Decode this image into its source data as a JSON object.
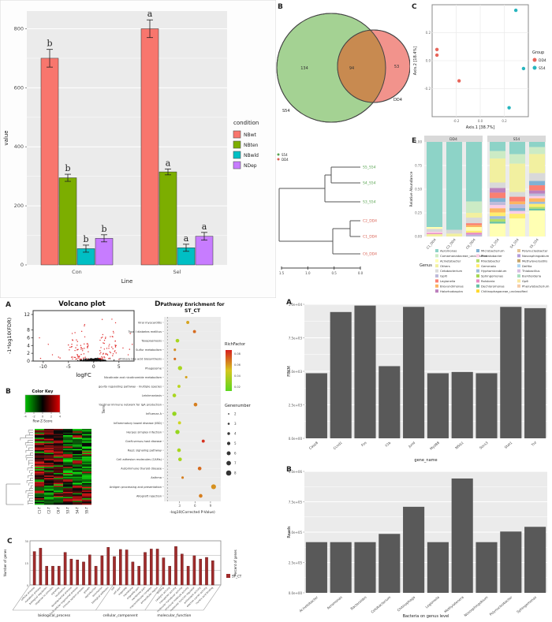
{
  "chart_data": [
    {
      "type": "bar",
      "panel_label": "",
      "title": "",
      "xlabel": "Line",
      "ylabel": "value",
      "categories": [
        "Con",
        "Sel"
      ],
      "legend_title": "condition",
      "series": [
        {
          "name": "NBwt",
          "color": "#F8766D",
          "values": [
            700,
            800
          ],
          "errors": [
            30,
            30
          ],
          "letters": [
            "b",
            "a"
          ]
        },
        {
          "name": "NBten",
          "color": "#7CAE00",
          "values": [
            295,
            315
          ],
          "errors": [
            12,
            10
          ],
          "letters": [
            "b",
            "a"
          ]
        },
        {
          "name": "NBwld",
          "color": "#00BFC4",
          "values": [
            55,
            58
          ],
          "errors": [
            12,
            12
          ],
          "letters": [
            "b",
            "a"
          ]
        },
        {
          "name": "NDep",
          "color": "#C77CFF",
          "values": [
            90,
            97
          ],
          "errors": [
            12,
            13
          ],
          "letters": [
            "b",
            "a"
          ]
        }
      ],
      "yticks": [
        0,
        200,
        400,
        600,
        800
      ],
      "ylim": [
        0,
        860
      ]
    },
    {
      "type": "venn",
      "panel_label": "B",
      "left_label": "S54",
      "right_label": "DD4",
      "left_only": "134",
      "overlap": "94",
      "right_only": "53",
      "left_color": "#A4D293",
      "right_color": "#F2938C",
      "overlap_color": "#C88A50"
    },
    {
      "type": "scatter",
      "panel_label": "C",
      "xlabel": "Axis.1 [38.7%]",
      "ylabel": "Axis.2 [18.4%]",
      "xticks": [
        "-0.2",
        "0.0",
        "0.2"
      ],
      "yticks": [
        "0.2",
        "0.0",
        "-0.2"
      ],
      "legend_title": "Group",
      "groups": [
        {
          "name": "DD4",
          "color": "#E8655A",
          "points": [
            [
              0.05,
              0.4
            ],
            [
              0.05,
              0.45
            ],
            [
              0.28,
              0.68
            ]
          ]
        },
        {
          "name": "S54",
          "color": "#27B5BE",
          "points": [
            [
              0.87,
              0.05
            ],
            [
              0.95,
              0.57
            ],
            [
              0.8,
              0.92
            ]
          ]
        }
      ]
    },
    {
      "type": "dendrogram",
      "panel_label": "D",
      "legend": [
        {
          "name": "S54",
          "color": "#57A34F"
        },
        {
          "name": "DD4",
          "color": "#D95F52"
        }
      ],
      "leaves": [
        {
          "label": "S5_S54",
          "color": "#57A34F"
        },
        {
          "label": "S4_S54",
          "color": "#57A34F"
        },
        {
          "label": "S3_S54",
          "color": "#57A34F"
        },
        {
          "label": "C2_DD4",
          "color": "#D95F52"
        },
        {
          "label": "C1_DD4",
          "color": "#D95F52"
        },
        {
          "label": "C6_DD4",
          "color": "#D95F52"
        }
      ],
      "scale_ticks": [
        "1.5",
        "1.0",
        "0.5",
        "0.0"
      ]
    },
    {
      "type": "bar",
      "panel_label": "E",
      "ylabel": "Relative Abundance",
      "yticks": [
        "1.00",
        "0.75",
        "0.50",
        "0.25",
        "0.00"
      ],
      "facets": [
        "DD4",
        "S54"
      ],
      "bar_labels": [
        "C1_DD4",
        "C2_DD4",
        "C6_DD4",
        "S3_S54",
        "S4_S54",
        "S5_S54"
      ],
      "legend_title": "Genus",
      "genera": [
        "Aeromonas",
        "Comamonadaceae_unclassified",
        "Acinetobacter",
        "Others",
        "Cetobacterium",
        "GpXI",
        "Legionella",
        "Brevundimonas",
        "Halorhodospira",
        "Microbacterium",
        "Phreatobacter",
        "Rhodobacter",
        "Gemmata",
        "Hyphomicrobium",
        "Sphingomonas",
        "Ralstonia",
        "Dechloromonas",
        "Chitinophagaceae_unclassified",
        "Polynucleobacter",
        "Novosphingobium",
        "Methyloversatilis",
        "Delftia",
        "Thiobacillus",
        "Burkholderia",
        "Gp6",
        "Phenylobacterium"
      ],
      "colors": [
        "#8DD3C7",
        "#CCEBC5",
        "#FFFFB3",
        "#F2F0A0",
        "#D9D9D9",
        "#BEBADA",
        "#FB8072",
        "#FDB462",
        "#BC80BD",
        "#80B1D3",
        "#FCCDE5",
        "#B3DE69",
        "#FFED6F",
        "#9EBCDA",
        "#A6D854",
        "#E78AC3",
        "#66C2A5",
        "#FFD92F",
        "#E5C494",
        "#B39DDB",
        "#C7A76C",
        "#AED6F1",
        "#D7BDE2",
        "#A9DFBF",
        "#F9E79F",
        "#F5CBA7"
      ],
      "bars": [
        [
          [
            0,
            90
          ],
          [
            2,
            2
          ],
          [
            4,
            3
          ],
          [
            10,
            1.5
          ],
          [
            15,
            1
          ],
          [
            3,
            2.5
          ]
        ],
        [
          [
            0,
            93
          ],
          [
            4,
            4
          ],
          [
            3,
            3
          ]
        ],
        [
          [
            0,
            63
          ],
          [
            1,
            12
          ],
          [
            3,
            5
          ],
          [
            4,
            6
          ],
          [
            6,
            2
          ],
          [
            7,
            2
          ],
          [
            2,
            4
          ],
          [
            12,
            2
          ],
          [
            15,
            2
          ],
          [
            5,
            2
          ]
        ],
        [
          [
            0,
            10
          ],
          [
            1,
            8
          ],
          [
            3,
            26
          ],
          [
            4,
            6
          ],
          [
            8,
            5
          ],
          [
            6,
            6
          ],
          [
            9,
            4
          ],
          [
            5,
            3.5
          ],
          [
            10,
            3.5
          ],
          [
            7,
            4.5
          ],
          [
            12,
            4
          ],
          [
            13,
            3
          ],
          [
            11,
            3
          ],
          [
            16,
            2
          ],
          [
            2,
            14
          ]
        ],
        [
          [
            0,
            13
          ],
          [
            1,
            10
          ],
          [
            3,
            30
          ],
          [
            4,
            5
          ],
          [
            6,
            5
          ],
          [
            7,
            3
          ],
          [
            5,
            4
          ],
          [
            9,
            3
          ],
          [
            10,
            3
          ],
          [
            12,
            5
          ],
          [
            2,
            19
          ]
        ],
        [
          [
            0,
            6
          ],
          [
            1,
            8
          ],
          [
            3,
            22
          ],
          [
            4,
            9
          ],
          [
            9,
            5
          ],
          [
            6,
            6
          ],
          [
            8,
            3.5
          ],
          [
            5,
            3
          ],
          [
            10,
            2.5
          ],
          [
            7,
            4
          ],
          [
            13,
            2.5
          ],
          [
            12,
            3.5
          ],
          [
            11,
            2
          ],
          [
            16,
            2
          ],
          [
            2,
            30
          ]
        ]
      ]
    },
    {
      "type": "scatter",
      "panel_label": "A",
      "title": "Volcano plot",
      "xlabel": "logFC",
      "ylabel": "-1*log10(FDR)",
      "xticks": [
        -10,
        -5,
        0,
        5
      ],
      "yticks": [
        0,
        2,
        4,
        6,
        8,
        12
      ],
      "xlim": [
        -12,
        8
      ],
      "ylim": [
        0,
        13
      ],
      "n_black": 380,
      "n_red": 140,
      "black_color": "#111111",
      "red_color": "#E03030",
      "seed": 42
    },
    {
      "type": "heatmap",
      "panel_label": "B",
      "key_title": "Color Key",
      "key_label": "Row Z-Score",
      "key_ticks": [
        "-4",
        "-2",
        "0",
        "2",
        "4"
      ],
      "low_color": "#00C000",
      "mid_color": "#000000",
      "high_color": "#E00000",
      "col_labels": [
        "C1-T",
        "C2-T",
        "C6-T",
        "S3-T",
        "S4-T",
        "S5-T"
      ],
      "rows": 60,
      "cols": 6,
      "flip_row": 46,
      "seed": 7
    },
    {
      "type": "scatter",
      "panel_label": "D",
      "title_line1": "Pathway Enrichment for",
      "title_line2": "ST_CT",
      "xlabel": "-log10(Corrected P-Value)",
      "ylabel": "Term",
      "xticks": [
        "3",
        "6",
        "9"
      ],
      "color_legend_title": "RichFactor",
      "color_legend_ticks": [
        "0.08",
        "0.06",
        "0.04",
        "0.02"
      ],
      "size_legend_title": "Genenumber",
      "size_legend_values": [
        "2",
        "3",
        "4",
        "5",
        "6",
        "7",
        "8"
      ],
      "terms": [
        {
          "label": "Viral myocarditis",
          "x": 4.6,
          "n": 3,
          "rf": 0.045
        },
        {
          "label": "Type I diabetes mellitus",
          "x": 5.9,
          "n": 3,
          "rf": 0.06
        },
        {
          "label": "Toxoplasmosis",
          "x": 2.6,
          "n": 4,
          "rf": 0.02
        },
        {
          "label": "Sulfur metabolism",
          "x": 2.1,
          "n": 2,
          "rf": 0.05
        },
        {
          "label": "Primary bile acid biosynthesis",
          "x": 2.1,
          "n": 2,
          "rf": 0.06
        },
        {
          "label": "Phagosome",
          "x": 3.1,
          "n": 5,
          "rf": 0.02
        },
        {
          "label": "Nicotinate and nicotinamide metabolism",
          "x": 4.3,
          "n": 2,
          "rf": 0.045
        },
        {
          "label": "Longevity regulating pathway - multiple species",
          "x": 2.9,
          "n": 3,
          "rf": 0.025
        },
        {
          "label": "Leishmaniasis",
          "x": 2.0,
          "n": 4,
          "rf": 0.02
        },
        {
          "label": "Intestinal immune network for IgA production",
          "x": 6.1,
          "n": 4,
          "rf": 0.055
        },
        {
          "label": "Influenza A",
          "x": 2.0,
          "n": 5,
          "rf": 0.015
        },
        {
          "label": "Inflammatory bowel disease (IBD)",
          "x": 3.0,
          "n": 3,
          "rf": 0.03
        },
        {
          "label": "Herpes simplex infection",
          "x": 2.6,
          "n": 5,
          "rf": 0.015
        },
        {
          "label": "Graft-versus-host disease",
          "x": 7.6,
          "n": 3,
          "rf": 0.075
        },
        {
          "label": "Rap1 signaling pathway",
          "x": 2.9,
          "n": 4,
          "rf": 0.02
        },
        {
          "label": "Cell adhesion molecules (CAMs)",
          "x": 3.1,
          "n": 4,
          "rf": 0.02
        },
        {
          "label": "Autoimmune thyroid disease",
          "x": 6.9,
          "n": 4,
          "rf": 0.06
        },
        {
          "label": "Asthma",
          "x": 3.6,
          "n": 2,
          "rf": 0.055
        },
        {
          "label": "Antigen processing and presentation",
          "x": 9.6,
          "n": 6,
          "rf": 0.05
        },
        {
          "label": "Allograft rejection",
          "x": 7.1,
          "n": 4,
          "rf": 0.055
        }
      ]
    },
    {
      "type": "bar",
      "panel_label": "C",
      "legend_label": "ST_CT",
      "bar_color": "#A02C2C",
      "ylabel_left": "Number of genes",
      "ylabel_right": "Percent of genes",
      "yticks_left": [
        "30",
        "15",
        "0"
      ],
      "group_labels": [
        "biological_process",
        "cellular_component",
        "molecular_function"
      ],
      "group_sizes": [
        13,
        8,
        9
      ],
      "categories": [
        "cellular process",
        "metabolic process",
        "biological regulation",
        "response to stimulus",
        "signaling",
        "localization",
        "developmental process",
        "multicellular organismal process",
        "immune system process",
        "growth",
        "reproduction",
        "locomotion",
        "biological adhesion",
        "cell",
        "cell part",
        "organelle",
        "membrane",
        "organelle part",
        "membrane part",
        "macromolecular complex",
        "extracellular region",
        "binding",
        "catalytic activity",
        "transporter activity",
        "molecular transducer activity",
        "structural molecule activity",
        "molecular function regulator",
        "antioxidant activity",
        "electron carrier activity",
        "nucleic acid binding"
      ],
      "values": [
        0.8,
        0.88,
        0.45,
        0.45,
        0.45,
        0.78,
        0.62,
        0.6,
        0.55,
        0.72,
        0.45,
        0.7,
        0.9,
        0.68,
        0.85,
        0.84,
        0.55,
        0.45,
        0.78,
        0.86,
        0.86,
        0.65,
        0.45,
        0.92,
        0.74,
        0.45,
        0.7,
        0.62,
        0.66,
        0.58
      ]
    },
    {
      "type": "bar",
      "panel_label": "A",
      "xlabel": "gene_name",
      "ylabel": "FPKM",
      "bar_color": "#595959",
      "yticks": [
        "1.0e+04",
        "7.5e+03",
        "5.0e+03",
        "2.5e+03",
        "0.0e+00"
      ],
      "ymax": 10400,
      "categories": [
        "Casp8",
        "Ccnd1",
        "Fos",
        "Il1b",
        "Jund",
        "Myd88",
        "Nfkb1",
        "Socs3",
        "Stat1",
        "Tnf"
      ],
      "values": [
        5050,
        9800,
        10300,
        5600,
        10200,
        5050,
        5150,
        5050,
        10200,
        10100
      ]
    },
    {
      "type": "bar",
      "panel_label": "B",
      "xlabel": "Bacteria on genus level",
      "ylabel": "Reads",
      "bar_color": "#595959",
      "yticks": [
        "1.0e+06",
        "7.5e+05",
        "5.0e+05",
        "2.5e+05",
        "0.0e+00"
      ],
      "ymax": 1030000,
      "categories": [
        "Acinetobacter",
        "Aeromonas",
        "Bacteroides",
        "Cetobacterium",
        "Chitinophaga",
        "Legionella",
        "Methylotenera",
        "Novosphingobium",
        "Polynucleobacter",
        "Sphingomonas"
      ],
      "values": [
        430000,
        430000,
        430000,
        500000,
        730000,
        430000,
        970000,
        430000,
        520000,
        560000
      ]
    }
  ]
}
